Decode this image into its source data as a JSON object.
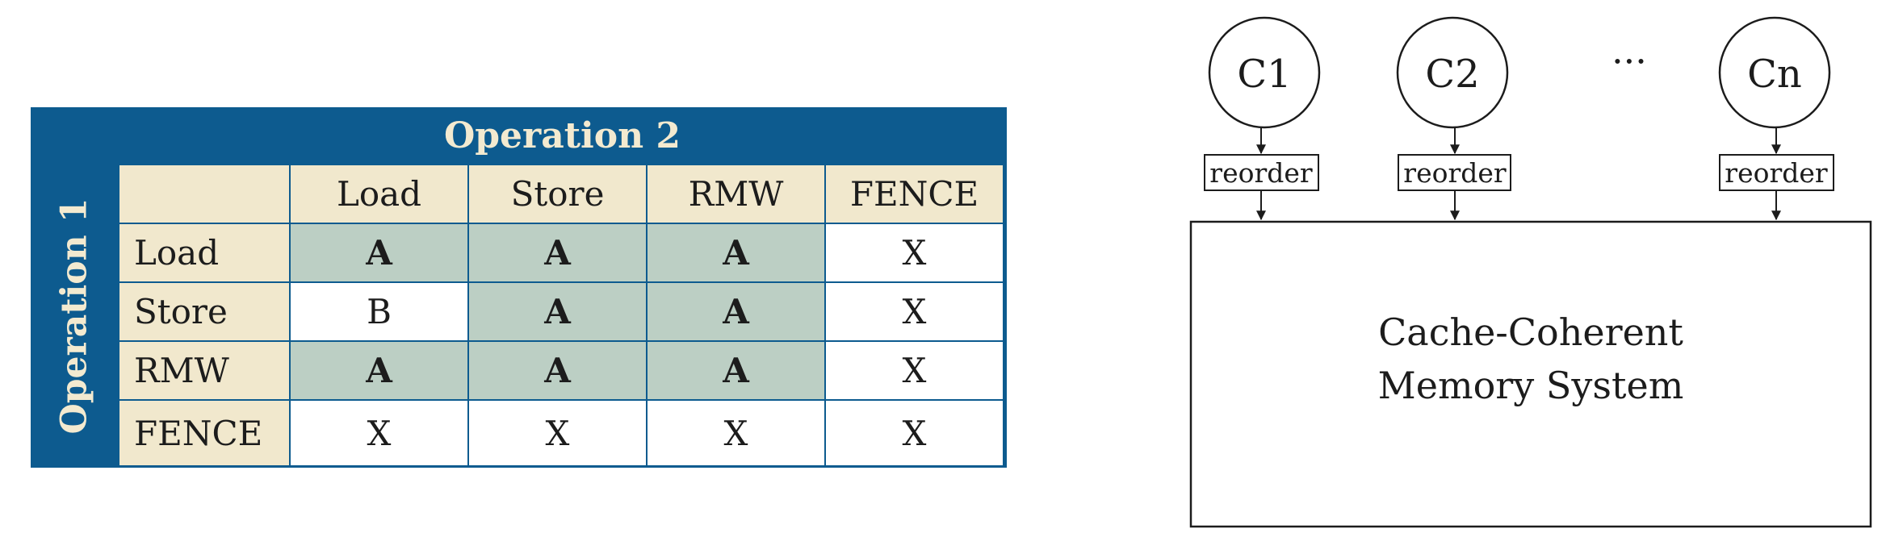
{
  "table": {
    "col_group_label": "Operation 2",
    "row_group_label": "Operation 1",
    "corner": "",
    "columns": [
      "Load",
      "Store",
      "RMW",
      "FENCE"
    ],
    "rows": [
      {
        "label": "Load",
        "cells": [
          "A",
          "A",
          "A",
          "X"
        ]
      },
      {
        "label": "Store",
        "cells": [
          "B",
          "A",
          "A",
          "X"
        ]
      },
      {
        "label": "RMW",
        "cells": [
          "A",
          "A",
          "A",
          "X"
        ]
      },
      {
        "label": "FENCE",
        "cells": [
          "X",
          "X",
          "X",
          "X"
        ]
      }
    ],
    "colors": {
      "frame": "#0d5b8f",
      "header_bg": "#f1e8cd",
      "header_text": "#f3ead0",
      "shaded_A": "#bccfc4",
      "plain": "#ffffff"
    }
  },
  "diagram": {
    "cores": [
      {
        "label": "C1",
        "buffer": "reorder"
      },
      {
        "label": "C2",
        "buffer": "reorder"
      },
      {
        "label": "Cn",
        "buffer": "reorder"
      }
    ],
    "ellipsis": "···",
    "memory_line1": "Cache-Coherent",
    "memory_line2": "Memory System"
  }
}
